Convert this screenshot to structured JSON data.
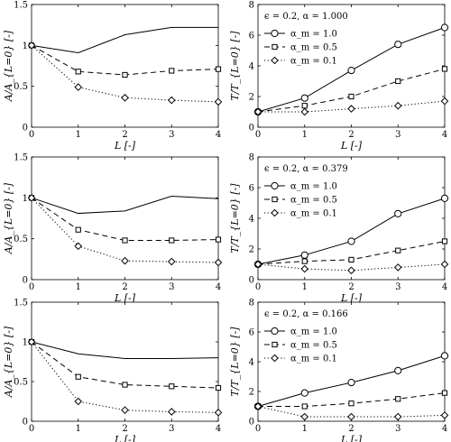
{
  "figure": {
    "panels": [
      {
        "id": "r1-left",
        "ylabel": "A/A_{L=0} [-]",
        "xlabel": "L [-]",
        "yticks": [
          "0",
          "0.5",
          "1",
          "1.5"
        ],
        "xticks": [
          "0",
          "1",
          "2",
          "3",
          "4"
        ]
      },
      {
        "id": "r1-right",
        "ylabel": "T/T_{L=0} [-]",
        "xlabel": "L [-]",
        "annotation": "ϵ = 0.2, α = 1.000",
        "legend": [
          "α_m = 1.0",
          "α_m = 0.5",
          "α_m = 0.1"
        ],
        "yticks": [
          "0",
          "2",
          "4",
          "6",
          "8"
        ],
        "xticks": [
          "0",
          "1",
          "2",
          "3",
          "4"
        ]
      },
      {
        "id": "r2-left",
        "ylabel": "A/A_{L=0} [-]",
        "xlabel": "L [-]",
        "yticks": [
          "0",
          "0.5",
          "1",
          "1.5"
        ],
        "xticks": [
          "0",
          "1",
          "2",
          "3",
          "4"
        ]
      },
      {
        "id": "r2-right",
        "ylabel": "T/T_{L=0} [-]",
        "xlabel": "L [-]",
        "annotation": "ϵ = 0.2, α = 0.379",
        "legend": [
          "α_m = 1.0",
          "α_m = 0.5",
          "α_m = 0.1"
        ],
        "yticks": [
          "0",
          "2",
          "4",
          "6",
          "8"
        ],
        "xticks": [
          "0",
          "1",
          "2",
          "3",
          "4"
        ]
      },
      {
        "id": "r3-left",
        "ylabel": "A/A_{L=0} [-]",
        "xlabel": "L [-]",
        "yticks": [
          "0",
          "0.5",
          "1",
          "1.5"
        ],
        "xticks": [
          "0",
          "1",
          "2",
          "3",
          "4"
        ]
      },
      {
        "id": "r3-right",
        "ylabel": "T/T_{L=0} [-]",
        "xlabel": "L [-]",
        "annotation": "ϵ = 0.2, α = 0.166",
        "legend": [
          "α_m = 1.0",
          "α_m = 0.5",
          "α_m = 0.1"
        ],
        "yticks": [
          "0",
          "2",
          "4",
          "6",
          "8"
        ],
        "xticks": [
          "0",
          "1",
          "2",
          "3",
          "4"
        ]
      }
    ]
  },
  "chart_data": [
    {
      "type": "line",
      "x": [
        0,
        1,
        2,
        3,
        4
      ],
      "xlabel": "L [-]",
      "ylabel": "A/A_{L=0} [-]",
      "xlim": [
        0,
        4
      ],
      "ylim": [
        0,
        1.5
      ],
      "grid": false,
      "series": [
        {
          "values": [
            1.0,
            0.91,
            1.13,
            1.22,
            1.22
          ],
          "line": "solid",
          "marker": "none",
          "color": "#000000"
        },
        {
          "values": [
            1.0,
            0.68,
            0.64,
            0.69,
            0.71
          ],
          "line": "dashed",
          "marker": "square",
          "color": "#000000"
        },
        {
          "values": [
            1.0,
            0.49,
            0.36,
            0.33,
            0.31
          ],
          "line": "dotted",
          "marker": "diamond",
          "color": "#000000"
        }
      ]
    },
    {
      "type": "line",
      "x": [
        0,
        1,
        2,
        3,
        4
      ],
      "xlabel": "L [-]",
      "ylabel": "T/T_{L=0} [-]",
      "xlim": [
        0,
        4
      ],
      "ylim": [
        0,
        8
      ],
      "grid": false,
      "legend_position": "top-left",
      "series": [
        {
          "name": "α_m = 1.0",
          "values": [
            1.0,
            1.9,
            3.7,
            5.4,
            6.5
          ],
          "line": "solid",
          "marker": "circle",
          "color": "#000000"
        },
        {
          "name": "α_m = 0.5",
          "values": [
            1.0,
            1.4,
            2.0,
            3.0,
            3.8
          ],
          "line": "dashed",
          "marker": "square",
          "color": "#000000"
        },
        {
          "name": "α_m = 0.1",
          "values": [
            1.0,
            1.0,
            1.2,
            1.4,
            1.7
          ],
          "line": "dotted",
          "marker": "diamond",
          "color": "#000000"
        }
      ]
    },
    {
      "type": "line",
      "x": [
        0,
        1,
        2,
        3,
        4
      ],
      "xlabel": "L [-]",
      "ylabel": "A/A_{L=0} [-]",
      "xlim": [
        0,
        4
      ],
      "ylim": [
        0,
        1.5
      ],
      "grid": false,
      "series": [
        {
          "values": [
            1.0,
            0.81,
            0.84,
            1.02,
            0.99
          ],
          "line": "solid",
          "marker": "none",
          "color": "#000000"
        },
        {
          "values": [
            1.0,
            0.61,
            0.48,
            0.48,
            0.49
          ],
          "line": "dashed",
          "marker": "square",
          "color": "#000000"
        },
        {
          "values": [
            1.0,
            0.41,
            0.23,
            0.22,
            0.21
          ],
          "line": "dotted",
          "marker": "diamond",
          "color": "#000000"
        }
      ]
    },
    {
      "type": "line",
      "x": [
        0,
        1,
        2,
        3,
        4
      ],
      "xlabel": "L [-]",
      "ylabel": "T/T_{L=0} [-]",
      "xlim": [
        0,
        4
      ],
      "ylim": [
        0,
        8
      ],
      "grid": false,
      "legend_position": "top-left",
      "series": [
        {
          "name": "α_m = 1.0",
          "values": [
            1.0,
            1.6,
            2.5,
            4.3,
            5.3
          ],
          "line": "solid",
          "marker": "circle",
          "color": "#000000"
        },
        {
          "name": "α_m = 0.5",
          "values": [
            1.0,
            1.2,
            1.3,
            1.9,
            2.5
          ],
          "line": "dashed",
          "marker": "square",
          "color": "#000000"
        },
        {
          "name": "α_m = 0.1",
          "values": [
            1.0,
            0.7,
            0.6,
            0.8,
            1.0
          ],
          "line": "dotted",
          "marker": "diamond",
          "color": "#000000"
        }
      ]
    },
    {
      "type": "line",
      "x": [
        0,
        1,
        2,
        3,
        4
      ],
      "xlabel": "L [-]",
      "ylabel": "A/A_{L=0} [-]",
      "xlim": [
        0,
        4
      ],
      "ylim": [
        0,
        1.5
      ],
      "grid": false,
      "series": [
        {
          "values": [
            1.0,
            0.85,
            0.79,
            0.79,
            0.8
          ],
          "line": "solid",
          "marker": "none",
          "color": "#000000"
        },
        {
          "values": [
            1.0,
            0.56,
            0.46,
            0.44,
            0.42
          ],
          "line": "dashed",
          "marker": "square",
          "color": "#000000"
        },
        {
          "values": [
            1.0,
            0.25,
            0.14,
            0.12,
            0.11
          ],
          "line": "dotted",
          "marker": "diamond",
          "color": "#000000"
        }
      ]
    },
    {
      "type": "line",
      "x": [
        0,
        1,
        2,
        3,
        4
      ],
      "xlabel": "L [-]",
      "ylabel": "T/T_{L=0} [-]",
      "xlim": [
        0,
        4
      ],
      "ylim": [
        0,
        8
      ],
      "grid": false,
      "legend_position": "top-left",
      "series": [
        {
          "name": "α_m = 1.0",
          "values": [
            1.0,
            1.9,
            2.6,
            3.4,
            4.4
          ],
          "line": "solid",
          "marker": "circle",
          "color": "#000000"
        },
        {
          "name": "α_m = 0.5",
          "values": [
            1.0,
            1.0,
            1.2,
            1.5,
            1.9
          ],
          "line": "dashed",
          "marker": "square",
          "color": "#000000"
        },
        {
          "name": "α_m = 0.1",
          "values": [
            1.0,
            0.3,
            0.3,
            0.3,
            0.4
          ],
          "line": "dotted",
          "marker": "diamond",
          "color": "#000000"
        }
      ]
    }
  ]
}
